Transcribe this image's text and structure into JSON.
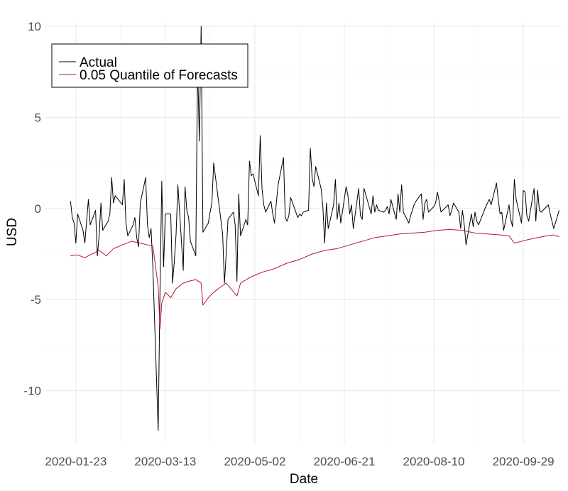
{
  "chart_data": {
    "type": "line",
    "xlabel": "Date",
    "ylabel": "USD",
    "xlim": [
      "2020-01-06",
      "2020-10-20"
    ],
    "ylim": [
      -12.9,
      10.2
    ],
    "x_ticks": [
      "2020-01-23",
      "2020-03-13",
      "2020-05-02",
      "2020-06-21",
      "2020-08-10",
      "2020-09-29"
    ],
    "y_ticks": [
      {
        "value": 10,
        "label": "10"
      },
      {
        "value": 5,
        "label": "5"
      },
      {
        "value": 0,
        "label": "0"
      },
      {
        "value": -5,
        "label": "-5"
      },
      {
        "value": -10,
        "label": "-10"
      }
    ],
    "grid": true,
    "legend": {
      "position": "top-left"
    },
    "series": [
      {
        "name": "Actual",
        "color": "#000000",
        "points": [
          [
            "2020-01-20",
            0.4
          ],
          [
            "2020-01-21",
            -0.5
          ],
          [
            "2020-01-22",
            -0.8
          ],
          [
            "2020-01-23",
            -1.9
          ],
          [
            "2020-01-24",
            -0.3
          ],
          [
            "2020-01-27",
            -1.2
          ],
          [
            "2020-01-28",
            -1.9
          ],
          [
            "2020-01-29",
            -0.7
          ],
          [
            "2020-01-30",
            0.5
          ],
          [
            "2020-01-31",
            -0.9
          ],
          [
            "2020-02-03",
            -0.1
          ],
          [
            "2020-02-04",
            -2.6
          ],
          [
            "2020-02-05",
            -1.5
          ],
          [
            "2020-02-06",
            0.3
          ],
          [
            "2020-02-07",
            -1.2
          ],
          [
            "2020-02-10",
            -0.7
          ],
          [
            "2020-02-11",
            -0.3
          ],
          [
            "2020-02-12",
            1.7
          ],
          [
            "2020-02-13",
            0.3
          ],
          [
            "2020-02-14",
            0.7
          ],
          [
            "2020-02-18",
            0.2
          ],
          [
            "2020-02-19",
            1.6
          ],
          [
            "2020-02-20",
            -0.8
          ],
          [
            "2020-02-21",
            -1.5
          ],
          [
            "2020-02-24",
            -0.9
          ],
          [
            "2020-02-25",
            -0.5
          ],
          [
            "2020-02-26",
            -1.6
          ],
          [
            "2020-02-27",
            -2.1
          ],
          [
            "2020-02-28",
            0.3
          ],
          [
            "2020-03-02",
            1.7
          ],
          [
            "2020-03-03",
            -0.9
          ],
          [
            "2020-03-04",
            -1.6
          ],
          [
            "2020-03-05",
            -1.1
          ],
          [
            "2020-03-06",
            -3.2
          ],
          [
            "2020-03-09",
            -12.2
          ],
          [
            "2020-03-10",
            -4.5
          ],
          [
            "2020-03-11",
            1.5
          ],
          [
            "2020-03-12",
            -3.2
          ],
          [
            "2020-03-13",
            -0.3
          ],
          [
            "2020-03-16",
            -0.3
          ],
          [
            "2020-03-17",
            -4.1
          ],
          [
            "2020-03-18",
            -2.9
          ],
          [
            "2020-03-19",
            -1.4
          ],
          [
            "2020-03-20",
            1.3
          ],
          [
            "2020-03-23",
            -3.4
          ],
          [
            "2020-03-24",
            1.2
          ],
          [
            "2020-03-25",
            -0.1
          ],
          [
            "2020-03-26",
            -0.5
          ],
          [
            "2020-03-27",
            -1.8
          ],
          [
            "2020-03-30",
            -2.6
          ],
          [
            "2020-03-31",
            8.0
          ],
          [
            "2020-04-01",
            3.7
          ],
          [
            "2020-04-02",
            10.0
          ],
          [
            "2020-04-03",
            -1.3
          ],
          [
            "2020-04-06",
            -0.8
          ],
          [
            "2020-04-07",
            -0.2
          ],
          [
            "2020-04-08",
            0.3
          ],
          [
            "2020-04-09",
            2.5
          ],
          [
            "2020-04-13",
            -0.6
          ],
          [
            "2020-04-14",
            -1.4
          ],
          [
            "2020-04-15",
            -4.1
          ],
          [
            "2020-04-16",
            -2.5
          ],
          [
            "2020-04-17",
            -0.6
          ],
          [
            "2020-04-20",
            -0.2
          ],
          [
            "2020-04-21",
            -0.9
          ],
          [
            "2020-04-22",
            -4.0
          ],
          [
            "2020-04-23",
            0.8
          ],
          [
            "2020-04-24",
            -1.5
          ],
          [
            "2020-04-27",
            -0.6
          ],
          [
            "2020-04-28",
            -0.9
          ],
          [
            "2020-04-29",
            2.6
          ],
          [
            "2020-04-30",
            1.8
          ],
          [
            "2020-05-01",
            1.9
          ],
          [
            "2020-05-04",
            0.7
          ],
          [
            "2020-05-05",
            4.0
          ],
          [
            "2020-05-06",
            1.1
          ],
          [
            "2020-05-07",
            0.2
          ],
          [
            "2020-05-08",
            -0.2
          ],
          [
            "2020-05-11",
            0.4
          ],
          [
            "2020-05-12",
            -0.3
          ],
          [
            "2020-05-13",
            -0.8
          ],
          [
            "2020-05-14",
            0.3
          ],
          [
            "2020-05-15",
            1.3
          ],
          [
            "2020-05-18",
            2.8
          ],
          [
            "2020-05-19",
            -0.5
          ],
          [
            "2020-05-20",
            -0.7
          ],
          [
            "2020-05-21",
            -0.4
          ],
          [
            "2020-05-22",
            0.6
          ],
          [
            "2020-05-26",
            -0.5
          ],
          [
            "2020-05-27",
            -0.3
          ],
          [
            "2020-05-28",
            -0.4
          ],
          [
            "2020-05-29",
            -0.2
          ],
          [
            "2020-06-01",
            -0.1
          ],
          [
            "2020-06-02",
            3.3
          ],
          [
            "2020-06-03",
            1.7
          ],
          [
            "2020-06-04",
            1.2
          ],
          [
            "2020-06-05",
            2.3
          ],
          [
            "2020-06-08",
            1.1
          ],
          [
            "2020-06-09",
            0.1
          ],
          [
            "2020-06-10",
            -1.9
          ],
          [
            "2020-06-11",
            0.3
          ],
          [
            "2020-06-12",
            -1.1
          ],
          [
            "2020-06-15",
            0.2
          ],
          [
            "2020-06-16",
            1.6
          ],
          [
            "2020-06-17",
            -0.6
          ],
          [
            "2020-06-18",
            0.3
          ],
          [
            "2020-06-19",
            -0.8
          ],
          [
            "2020-06-22",
            1.2
          ],
          [
            "2020-06-23",
            0.7
          ],
          [
            "2020-06-24",
            -0.3
          ],
          [
            "2020-06-25",
            0.2
          ],
          [
            "2020-06-26",
            -1.1
          ],
          [
            "2020-06-29",
            1.1
          ],
          [
            "2020-06-30",
            -0.4
          ],
          [
            "2020-07-01",
            -0.6
          ],
          [
            "2020-07-02",
            1.1
          ],
          [
            "2020-07-06",
            -0.3
          ],
          [
            "2020-07-07",
            0.7
          ],
          [
            "2020-07-08",
            -0.2
          ],
          [
            "2020-07-09",
            0.2
          ],
          [
            "2020-07-10",
            -0.1
          ],
          [
            "2020-07-13",
            -0.2
          ],
          [
            "2020-07-14",
            -0.1
          ],
          [
            "2020-07-15",
            0.1
          ],
          [
            "2020-07-16",
            -0.3
          ],
          [
            "2020-07-17",
            0.5
          ],
          [
            "2020-07-20",
            -0.6
          ],
          [
            "2020-07-21",
            0.8
          ],
          [
            "2020-07-22",
            -0.2
          ],
          [
            "2020-07-23",
            1.3
          ],
          [
            "2020-07-24",
            -0.2
          ],
          [
            "2020-07-27",
            -0.8
          ],
          [
            "2020-07-28",
            -0.4
          ],
          [
            "2020-07-29",
            -0.1
          ],
          [
            "2020-07-30",
            0.2
          ],
          [
            "2020-07-31",
            0.4
          ],
          [
            "2020-08-03",
            0.8
          ],
          [
            "2020-08-04",
            -0.6
          ],
          [
            "2020-08-05",
            0.3
          ],
          [
            "2020-08-06",
            0.5
          ],
          [
            "2020-08-07",
            -0.2
          ],
          [
            "2020-08-10",
            0.1
          ],
          [
            "2020-08-11",
            0.3
          ],
          [
            "2020-08-12",
            0.9
          ],
          [
            "2020-08-13",
            0.4
          ],
          [
            "2020-08-14",
            -0.2
          ],
          [
            "2020-08-17",
            0.1
          ],
          [
            "2020-08-18",
            0.2
          ],
          [
            "2020-08-19",
            -0.4
          ],
          [
            "2020-08-20",
            -0.1
          ],
          [
            "2020-08-21",
            0.3
          ],
          [
            "2020-08-24",
            -0.2
          ],
          [
            "2020-08-25",
            -1.1
          ],
          [
            "2020-08-26",
            -0.1
          ],
          [
            "2020-08-27",
            -0.9
          ],
          [
            "2020-08-28",
            -2.0
          ],
          [
            "2020-08-31",
            -0.3
          ],
          [
            "2020-09-01",
            -1.0
          ],
          [
            "2020-09-02",
            -0.2
          ],
          [
            "2020-09-03",
            -0.7
          ],
          [
            "2020-09-04",
            -0.9
          ],
          [
            "2020-09-08",
            0.1
          ],
          [
            "2020-09-09",
            0.3
          ],
          [
            "2020-09-10",
            0.5
          ],
          [
            "2020-09-11",
            0.2
          ],
          [
            "2020-09-14",
            1.4
          ],
          [
            "2020-09-15",
            0.5
          ],
          [
            "2020-09-16",
            -0.3
          ],
          [
            "2020-09-17",
            -0.2
          ],
          [
            "2020-09-18",
            -1.2
          ],
          [
            "2020-09-21",
            0.2
          ],
          [
            "2020-09-22",
            -0.6
          ],
          [
            "2020-09-23",
            -1.0
          ],
          [
            "2020-09-24",
            1.6
          ],
          [
            "2020-09-25",
            0.5
          ],
          [
            "2020-09-28",
            -0.8
          ],
          [
            "2020-09-29",
            1.0
          ],
          [
            "2020-09-30",
            0.9
          ],
          [
            "2020-10-01",
            -0.4
          ],
          [
            "2020-10-02",
            -0.7
          ],
          [
            "2020-10-05",
            1.1
          ],
          [
            "2020-10-06",
            -0.7
          ],
          [
            "2020-10-07",
            1.0
          ],
          [
            "2020-10-08",
            -0.1
          ],
          [
            "2020-10-09",
            -0.2
          ],
          [
            "2020-10-12",
            0.1
          ],
          [
            "2020-10-13",
            0.2
          ],
          [
            "2020-10-14",
            -0.3
          ],
          [
            "2020-10-15",
            -0.7
          ],
          [
            "2020-10-16",
            -1.1
          ],
          [
            "2020-10-19",
            -0.1
          ]
        ]
      },
      {
        "name": "0.05 Quantile of Forecasts",
        "color": "#b2182b",
        "points": [
          [
            "2020-01-20",
            -2.6
          ],
          [
            "2020-01-24",
            -2.55
          ],
          [
            "2020-01-28",
            -2.7
          ],
          [
            "2020-02-01",
            -2.5
          ],
          [
            "2020-02-05",
            -2.3
          ],
          [
            "2020-02-09",
            -2.6
          ],
          [
            "2020-02-13",
            -2.2
          ],
          [
            "2020-02-18",
            -2.0
          ],
          [
            "2020-02-23",
            -1.8
          ],
          [
            "2020-02-28",
            -1.9
          ],
          [
            "2020-03-03",
            -2.0
          ],
          [
            "2020-03-06",
            -2.05
          ],
          [
            "2020-03-09",
            -4.3
          ],
          [
            "2020-03-10",
            -6.6
          ],
          [
            "2020-03-11",
            -5.2
          ],
          [
            "2020-03-13",
            -4.6
          ],
          [
            "2020-03-16",
            -4.9
          ],
          [
            "2020-03-19",
            -4.4
          ],
          [
            "2020-03-23",
            -4.1
          ],
          [
            "2020-03-26",
            -4.0
          ],
          [
            "2020-03-30",
            -3.9
          ],
          [
            "2020-04-02",
            -4.1
          ],
          [
            "2020-04-03",
            -5.3
          ],
          [
            "2020-04-06",
            -4.9
          ],
          [
            "2020-04-09",
            -4.6
          ],
          [
            "2020-04-13",
            -4.3
          ],
          [
            "2020-04-16",
            -4.1
          ],
          [
            "2020-04-22",
            -4.8
          ],
          [
            "2020-04-24",
            -4.1
          ],
          [
            "2020-04-29",
            -3.8
          ],
          [
            "2020-05-06",
            -3.5
          ],
          [
            "2020-05-13",
            -3.3
          ],
          [
            "2020-05-20",
            -3.0
          ],
          [
            "2020-05-27",
            -2.8
          ],
          [
            "2020-06-03",
            -2.5
          ],
          [
            "2020-06-10",
            -2.3
          ],
          [
            "2020-06-17",
            -2.2
          ],
          [
            "2020-06-24",
            -2.0
          ],
          [
            "2020-07-01",
            -1.8
          ],
          [
            "2020-07-08",
            -1.6
          ],
          [
            "2020-07-15",
            -1.5
          ],
          [
            "2020-07-22",
            -1.4
          ],
          [
            "2020-07-29",
            -1.35
          ],
          [
            "2020-08-05",
            -1.3
          ],
          [
            "2020-08-12",
            -1.2
          ],
          [
            "2020-08-19",
            -1.15
          ],
          [
            "2020-08-26",
            -1.2
          ],
          [
            "2020-09-02",
            -1.35
          ],
          [
            "2020-09-09",
            -1.4
          ],
          [
            "2020-09-16",
            -1.45
          ],
          [
            "2020-09-21",
            -1.5
          ],
          [
            "2020-09-24",
            -1.9
          ],
          [
            "2020-09-28",
            -1.8
          ],
          [
            "2020-10-02",
            -1.7
          ],
          [
            "2020-10-07",
            -1.6
          ],
          [
            "2020-10-12",
            -1.5
          ],
          [
            "2020-10-16",
            -1.45
          ],
          [
            "2020-10-19",
            -1.55
          ]
        ]
      }
    ]
  }
}
